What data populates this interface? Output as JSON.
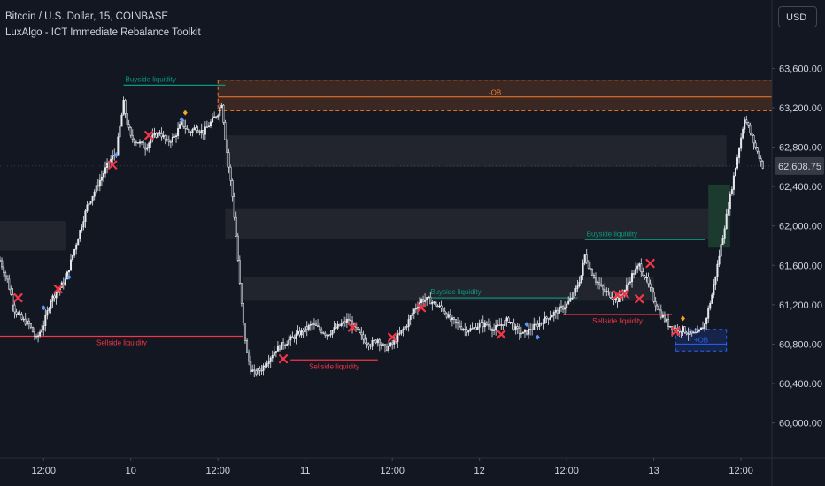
{
  "header": {
    "symbol": "Bitcoin / U.S. Dollar, 15, COINBASE",
    "indicator": "LuxAlgo - ICT Immediate Rebalance Toolkit"
  },
  "currency_button": "USD",
  "colors": {
    "background": "#131722",
    "candle": "#e6e8ee",
    "buyside": "#089981",
    "sellside": "#f23645",
    "bearish_ob": "#f77c2a",
    "bullish_ob": "#2962ff",
    "imbalance_zone": "#23262f",
    "green_zone": "#1c3a2e",
    "cross_marker": "#f23645",
    "marker_blue": "#5b9cf6",
    "marker_orange": "#f5a623"
  },
  "chart_data": {
    "type": "candlestick",
    "timeframe": "15",
    "y_axis": {
      "ylim": [
        59700,
        63900
      ],
      "ticks": [
        60000,
        60400,
        60800,
        61200,
        61600,
        62000,
        62400,
        62800,
        63200,
        63600
      ],
      "tick_labels": [
        "60,000.00",
        "60,400.00",
        "60,800.00",
        "61,200.00",
        "61,600.00",
        "62,000.00",
        "62,400.00",
        "62,800.00",
        "63,200.00",
        "63,600.00"
      ]
    },
    "x_axis": {
      "xlim": [
        0,
        425
      ],
      "ticks": [
        {
          "x": 24,
          "label": "12:00"
        },
        {
          "x": 72,
          "label": "10"
        },
        {
          "x": 120,
          "label": "12:00"
        },
        {
          "x": 168,
          "label": "11"
        },
        {
          "x": 216,
          "label": "12:00"
        },
        {
          "x": 264,
          "label": "12"
        },
        {
          "x": 312,
          "label": "12:00"
        },
        {
          "x": 360,
          "label": "13"
        },
        {
          "x": 408,
          "label": "12:00"
        }
      ]
    },
    "last_price": 62608.75,
    "last_price_label": "62,608.75",
    "path": [
      [
        0,
        61650
      ],
      [
        4,
        61450
      ],
      [
        8,
        61150
      ],
      [
        12,
        61050
      ],
      [
        16,
        61000
      ],
      [
        20,
        60850
      ],
      [
        24,
        61000
      ],
      [
        28,
        61250
      ],
      [
        32,
        61350
      ],
      [
        36,
        61450
      ],
      [
        40,
        61700
      ],
      [
        44,
        61950
      ],
      [
        48,
        62200
      ],
      [
        52,
        62350
      ],
      [
        56,
        62500
      ],
      [
        60,
        62650
      ],
      [
        64,
        62750
      ],
      [
        66,
        63000
      ],
      [
        68,
        63250
      ],
      [
        70,
        63050
      ],
      [
        72,
        62900
      ],
      [
        76,
        62850
      ],
      [
        80,
        62800
      ],
      [
        84,
        62900
      ],
      [
        88,
        62950
      ],
      [
        92,
        62850
      ],
      [
        96,
        62900
      ],
      [
        100,
        63050
      ],
      [
        104,
        62950
      ],
      [
        108,
        63000
      ],
      [
        112,
        62950
      ],
      [
        116,
        63050
      ],
      [
        120,
        63150
      ],
      [
        122,
        63250
      ],
      [
        124,
        62900
      ],
      [
        126,
        62600
      ],
      [
        128,
        62300
      ],
      [
        130,
        61900
      ],
      [
        132,
        61400
      ],
      [
        134,
        61000
      ],
      [
        136,
        60700
      ],
      [
        138,
        60550
      ],
      [
        140,
        60500
      ],
      [
        144,
        60550
      ],
      [
        148,
        60650
      ],
      [
        152,
        60750
      ],
      [
        156,
        60800
      ],
      [
        160,
        60850
      ],
      [
        164,
        60900
      ],
      [
        168,
        60950
      ],
      [
        172,
        61000
      ],
      [
        176,
        60950
      ],
      [
        180,
        60900
      ],
      [
        184,
        60950
      ],
      [
        188,
        61000
      ],
      [
        192,
        61050
      ],
      [
        196,
        60950
      ],
      [
        200,
        60850
      ],
      [
        204,
        60800
      ],
      [
        208,
        60850
      ],
      [
        212,
        60750
      ],
      [
        216,
        60800
      ],
      [
        220,
        60900
      ],
      [
        224,
        61000
      ],
      [
        228,
        61150
      ],
      [
        232,
        61250
      ],
      [
        236,
        61250
      ],
      [
        240,
        61200
      ],
      [
        244,
        61150
      ],
      [
        248,
        61050
      ],
      [
        252,
        61000
      ],
      [
        256,
        60950
      ],
      [
        260,
        60950
      ],
      [
        264,
        61000
      ],
      [
        268,
        61000
      ],
      [
        272,
        60950
      ],
      [
        276,
        61000
      ],
      [
        280,
        61050
      ],
      [
        284,
        60950
      ],
      [
        288,
        60900
      ],
      [
        292,
        60950
      ],
      [
        296,
        61000
      ],
      [
        300,
        61050
      ],
      [
        304,
        61100
      ],
      [
        308,
        61150
      ],
      [
        312,
        61200
      ],
      [
        316,
        61300
      ],
      [
        320,
        61500
      ],
      [
        322,
        61700
      ],
      [
        324,
        61600
      ],
      [
        328,
        61450
      ],
      [
        332,
        61350
      ],
      [
        336,
        61300
      ],
      [
        340,
        61250
      ],
      [
        344,
        61350
      ],
      [
        348,
        61500
      ],
      [
        352,
        61600
      ],
      [
        356,
        61450
      ],
      [
        360,
        61250
      ],
      [
        364,
        61100
      ],
      [
        368,
        61000
      ],
      [
        372,
        60950
      ],
      [
        376,
        60950
      ],
      [
        380,
        60900
      ],
      [
        384,
        60900
      ],
      [
        388,
        61000
      ],
      [
        392,
        61300
      ],
      [
        396,
        61700
      ],
      [
        400,
        62100
      ],
      [
        404,
        62500
      ],
      [
        408,
        62900
      ],
      [
        410,
        63100
      ],
      [
        412,
        63000
      ],
      [
        416,
        62800
      ],
      [
        420,
        62608
      ]
    ],
    "liquidity_lines": [
      {
        "label": "Buyside liquidity",
        "side": "buyside",
        "x0": 68,
        "x1": 124,
        "y": 63430
      },
      {
        "label": "Sellside liquidity",
        "side": "sellside",
        "x0": 0,
        "x1": 134,
        "y": 60880
      },
      {
        "label": "Sellside liquidity",
        "side": "sellside",
        "x0": 160,
        "x1": 208,
        "y": 60640
      },
      {
        "label": "Buyside liquidity",
        "side": "buyside",
        "x0": 236,
        "x1": 318,
        "y": 61270
      },
      {
        "label": "Buyside liquidity",
        "side": "buyside",
        "x0": 322,
        "x1": 388,
        "y": 61860
      },
      {
        "label": "Sellside liquidity",
        "side": "sellside",
        "x0": 310,
        "x1": 370,
        "y": 61100
      }
    ],
    "order_blocks": [
      {
        "label": "-OB",
        "side": "bearish",
        "x0": 120,
        "x1": 425,
        "y_top": 63480,
        "y_mid": 63310,
        "y_bottom": 63170
      },
      {
        "label": "+OB",
        "side": "bullish",
        "x0": 372,
        "x1": 400,
        "y_top": 60950,
        "y_mid": 60800,
        "y_bottom": 60730
      }
    ],
    "imbalance_zones": [
      {
        "x0": 0,
        "x1": 36,
        "y0": 61750,
        "y1": 62050
      },
      {
        "x0": 124,
        "x1": 400,
        "y0": 62600,
        "y1": 62920
      },
      {
        "x0": 124,
        "x1": 400,
        "y0": 61870,
        "y1": 62180
      },
      {
        "x0": 134,
        "x1": 360,
        "y0": 61240,
        "y1": 61480
      }
    ],
    "green_zone": {
      "x0": 390,
      "x1": 402,
      "y0": 61780,
      "y1": 62420
    },
    "cross_markers": [
      [
        10,
        61270
      ],
      [
        32,
        61360
      ],
      [
        62,
        62620
      ],
      [
        82,
        62920
      ],
      [
        156,
        60650
      ],
      [
        194,
        60970
      ],
      [
        216,
        60870
      ],
      [
        232,
        61170
      ],
      [
        276,
        60900
      ],
      [
        340,
        61300
      ],
      [
        344,
        61310
      ],
      [
        352,
        61260
      ],
      [
        358,
        61620
      ],
      [
        372,
        60930
      ]
    ],
    "blue_markers": [
      [
        24,
        61170
      ],
      [
        38,
        61480
      ],
      [
        64,
        62720
      ],
      [
        100,
        63080
      ],
      [
        290,
        61000
      ],
      [
        296,
        60870
      ]
    ],
    "orange_markers": [
      [
        102,
        63150
      ],
      [
        376,
        61060
      ]
    ]
  }
}
